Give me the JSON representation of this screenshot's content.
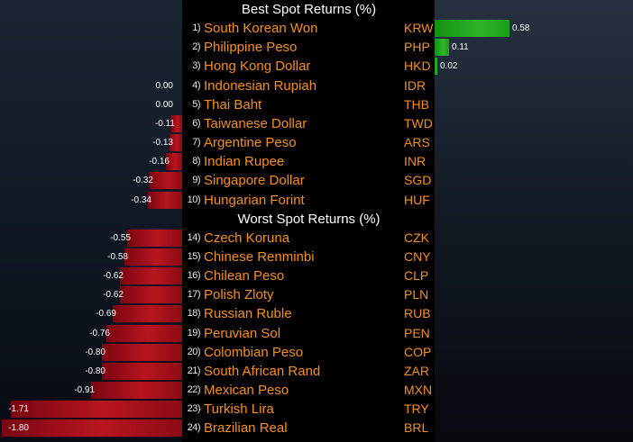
{
  "chart_data": {
    "type": "bar",
    "orientation": "horizontal",
    "groups": [
      {
        "title": "Best Spot Returns (%)",
        "rows": [
          {
            "rank": "1)",
            "name": "South Korean Won",
            "code": "KRW",
            "value": 0.58,
            "label": "0.58"
          },
          {
            "rank": "2)",
            "name": "Philippine Peso",
            "code": "PHP",
            "value": 0.11,
            "label": "0.11"
          },
          {
            "rank": "3)",
            "name": "Hong Kong Dollar",
            "code": "HKD",
            "value": 0.02,
            "label": "0.02"
          },
          {
            "rank": "4)",
            "name": "Indonesian Rupiah",
            "code": "IDR",
            "value": 0.0,
            "label": "0.00"
          },
          {
            "rank": "5)",
            "name": "Thai Baht",
            "code": "THB",
            "value": 0.0,
            "label": "0.00"
          },
          {
            "rank": "6)",
            "name": "Taiwanese Dollar",
            "code": "TWD",
            "value": -0.11,
            "label": "-0.11"
          },
          {
            "rank": "7)",
            "name": "Argentine Peso",
            "code": "ARS",
            "value": -0.13,
            "label": "-0.13"
          },
          {
            "rank": "8)",
            "name": "Indian Rupee",
            "code": "INR",
            "value": -0.16,
            "label": "-0.16"
          },
          {
            "rank": "9)",
            "name": "Singapore Dollar",
            "code": "SGD",
            "value": -0.32,
            "label": "-0.32"
          },
          {
            "rank": "10)",
            "name": "Hungarian Forint",
            "code": "HUF",
            "value": -0.34,
            "label": "-0.34"
          }
        ]
      },
      {
        "title": "Worst Spot Returns (%)",
        "rows": [
          {
            "rank": "14)",
            "name": "Czech Koruna",
            "code": "CZK",
            "value": -0.55,
            "label": "-0.55"
          },
          {
            "rank": "15)",
            "name": "Chinese Renminbi",
            "code": "CNY",
            "value": -0.58,
            "label": "-0.58"
          },
          {
            "rank": "16)",
            "name": "Chilean Peso",
            "code": "CLP",
            "value": -0.62,
            "label": "-0.62"
          },
          {
            "rank": "17)",
            "name": "Polish Zloty",
            "code": "PLN",
            "value": -0.62,
            "label": "-0.62"
          },
          {
            "rank": "18)",
            "name": "Russian Ruble",
            "code": "RUB",
            "value": -0.69,
            "label": "-0.69"
          },
          {
            "rank": "19)",
            "name": "Peruvian Sol",
            "code": "PEN",
            "value": -0.76,
            "label": "-0.76"
          },
          {
            "rank": "20)",
            "name": "Colombian Peso",
            "code": "COP",
            "value": -0.8,
            "label": "-0.80"
          },
          {
            "rank": "21)",
            "name": "South African Rand",
            "code": "ZAR",
            "value": -0.8,
            "label": "-0.80"
          },
          {
            "rank": "22)",
            "name": "Mexican Peso",
            "code": "MXN",
            "value": -0.91,
            "label": "-0.91"
          },
          {
            "rank": "23)",
            "name": "Turkish Lira",
            "code": "TRY",
            "value": -1.71,
            "label": "-1.71"
          },
          {
            "rank": "24)",
            "name": "Brazilian Real",
            "code": "BRL",
            "value": -1.8,
            "label": "-1.80"
          }
        ]
      }
    ],
    "positive_color": "#2fb52a",
    "negative_color": "#b8151e",
    "label_color": "#f5901e",
    "title_color": "#ffffff"
  }
}
